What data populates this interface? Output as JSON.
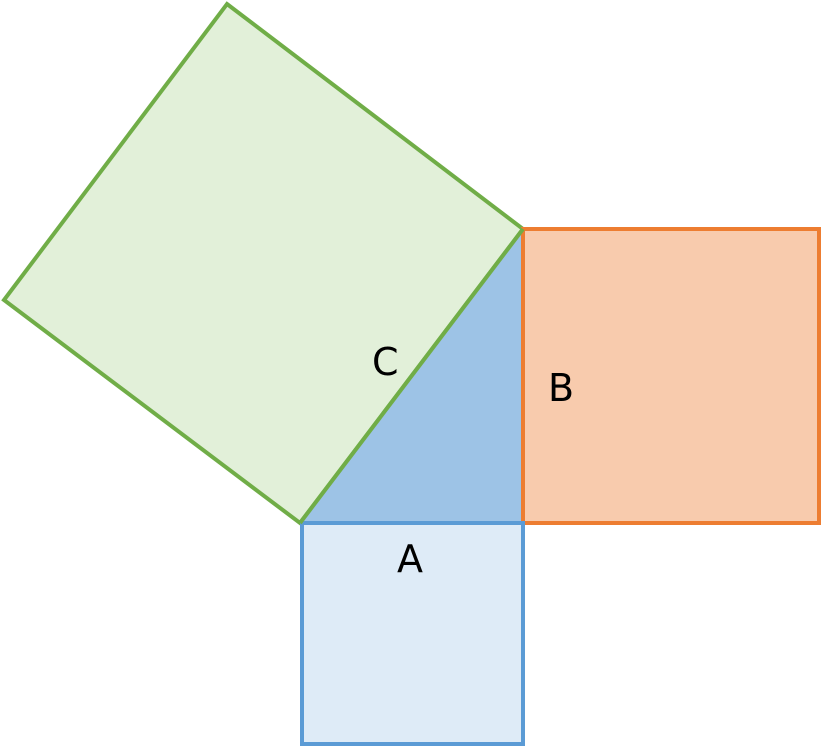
{
  "diagram": {
    "labels": {
      "a": "A",
      "b": "B",
      "c": "C"
    },
    "colors": {
      "triangle_fill": "#9dc3e6",
      "square_a_fill": "#deebf7",
      "square_a_stroke": "#5b9bd5",
      "square_b_fill": "#f8cbad",
      "square_b_stroke": "#ed7d31",
      "square_c_fill": "#e2f0d9",
      "square_c_stroke": "#70ad47"
    }
  }
}
